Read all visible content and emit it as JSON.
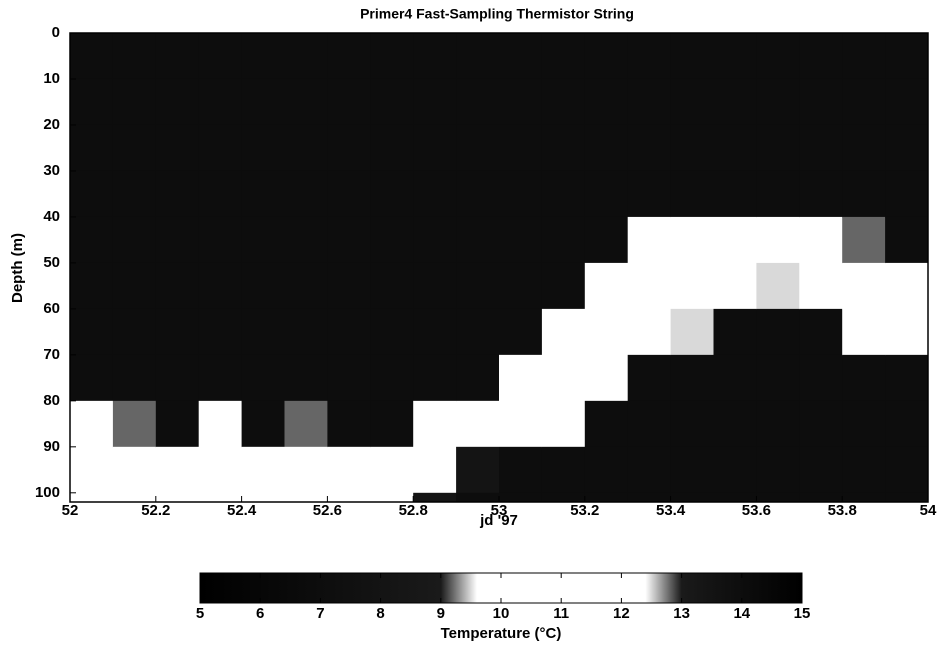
{
  "chart_data": {
    "type": "heatmap",
    "title": "Primer4  Fast-Sampling Thermistor String",
    "x_label": "jd '97",
    "y_label": "Depth (m)",
    "xbins": [
      52.0,
      52.1,
      52.2,
      52.3,
      52.4,
      52.5,
      52.6,
      52.7,
      52.8,
      52.9,
      53.0,
      53.1,
      53.2,
      53.3,
      53.4,
      53.5,
      53.6,
      53.7,
      53.8,
      53.9,
      54.0
    ],
    "ybins": [
      0,
      10,
      20,
      30,
      40,
      50,
      60,
      70,
      80,
      90,
      100,
      102
    ],
    "z": [
      [
        14,
        14,
        14,
        14,
        14,
        14,
        14,
        14,
        11,
        11,
        11
      ],
      [
        14,
        14,
        14,
        14,
        14,
        14,
        14,
        14,
        12.8,
        11,
        11
      ],
      [
        14,
        14,
        14,
        14,
        14,
        14,
        14,
        14,
        14,
        11,
        11
      ],
      [
        14,
        14,
        14,
        14,
        14,
        14,
        14,
        14,
        11,
        11,
        11
      ],
      [
        14,
        14,
        14,
        14,
        14,
        14,
        14,
        14,
        14,
        11,
        11
      ],
      [
        14,
        14,
        14,
        14,
        14,
        14,
        14,
        14,
        12.8,
        11,
        11
      ],
      [
        14,
        14,
        14,
        14,
        14,
        14,
        14,
        14,
        14,
        11,
        11
      ],
      [
        14,
        14,
        14,
        14,
        14,
        14,
        14,
        14,
        14,
        11,
        11
      ],
      [
        14,
        14,
        14,
        14,
        14,
        14,
        14,
        14,
        11,
        11,
        8
      ],
      [
        14,
        14,
        14,
        14,
        14,
        14,
        14,
        14,
        11,
        8,
        7
      ],
      [
        14,
        14,
        14,
        14,
        14,
        14,
        14,
        11,
        11,
        7,
        7
      ],
      [
        14,
        14,
        14,
        14,
        14,
        14,
        11,
        11,
        11,
        7,
        7
      ],
      [
        14,
        14,
        14,
        14,
        14,
        11,
        11,
        11,
        7,
        7,
        7
      ],
      [
        14,
        14,
        14,
        14,
        11,
        11,
        11,
        7,
        7,
        7,
        7
      ],
      [
        14,
        14,
        14,
        14,
        11,
        11,
        9.5,
        7,
        7,
        7,
        7
      ],
      [
        14,
        14,
        14,
        14,
        11,
        11,
        7,
        7,
        7,
        7,
        7
      ],
      [
        14,
        14,
        14,
        14,
        11,
        9.5,
        7,
        7,
        7,
        7,
        7
      ],
      [
        14,
        14,
        14,
        14,
        11,
        11,
        7,
        7,
        7,
        7,
        7
      ],
      [
        14,
        14,
        14,
        14,
        12.8,
        11,
        11,
        7,
        7,
        7,
        7
      ],
      [
        14,
        14,
        14,
        14,
        14,
        11,
        11,
        7,
        7,
        7,
        7
      ]
    ],
    "xlim": [
      52,
      54
    ],
    "xticks": [
      52,
      52.2,
      52.4,
      52.6,
      52.8,
      53,
      53.2,
      53.4,
      53.6,
      53.8,
      54
    ],
    "ylim": [
      0,
      102
    ],
    "yticks": [
      0,
      10,
      20,
      30,
      40,
      50,
      60,
      70,
      80,
      90,
      100
    ],
    "y_reversed": true,
    "colormap": [
      [
        5,
        "#000000"
      ],
      [
        9,
        "#1a1a1a"
      ],
      [
        9.6,
        "#ffffff"
      ],
      [
        12.4,
        "#ffffff"
      ],
      [
        13,
        "#1a1a1a"
      ],
      [
        15,
        "#000000"
      ]
    ],
    "colorbar_label": "Temperature (°C)",
    "clim": [
      5,
      15
    ],
    "cticks": [
      5,
      6,
      7,
      8,
      9,
      10,
      11,
      12,
      13,
      14,
      15
    ]
  }
}
